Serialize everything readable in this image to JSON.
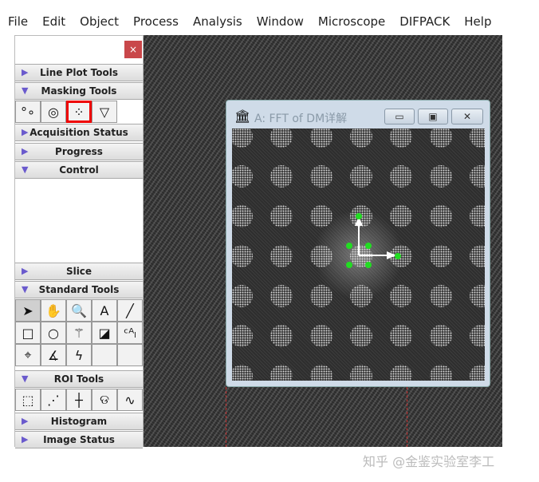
{
  "menu": [
    "File",
    "Edit",
    "Object",
    "Process",
    "Analysis",
    "Window",
    "Microscope",
    "DIFPACK",
    "Help"
  ],
  "panel": {
    "close": "×",
    "sections": {
      "line_plot": "Line Plot Tools",
      "masking": "Masking Tools",
      "acquisition": "Acquisition Status",
      "progress": "Progress",
      "control": "Control",
      "slice": "Slice",
      "standard": "Standard Tools",
      "roi": "ROI Tools",
      "histogram": "Histogram",
      "image_status": "Image Status"
    },
    "masking_tools": [
      {
        "icon": "point-mask-icon",
        "glyph": "°∘"
      },
      {
        "icon": "ring-mask-icon",
        "glyph": "◎"
      },
      {
        "icon": "array-mask-icon",
        "glyph": "⁘"
      },
      {
        "icon": "wedge-mask-icon",
        "glyph": "▽"
      }
    ],
    "standard_tools": [
      {
        "icon": "pointer-icon",
        "glyph": "➤"
      },
      {
        "icon": "hand-icon",
        "glyph": "✋"
      },
      {
        "icon": "magnifier-icon",
        "glyph": "🔍"
      },
      {
        "icon": "text-icon",
        "glyph": "A"
      },
      {
        "icon": "line-icon",
        "glyph": "╱"
      },
      {
        "icon": "rectangle-icon",
        "glyph": "□"
      },
      {
        "icon": "oval-icon",
        "glyph": "○"
      },
      {
        "icon": "magic-wand-icon",
        "glyph": "⚚"
      },
      {
        "icon": "profile-icon",
        "glyph": "◪"
      },
      {
        "icon": "calibration-icon",
        "glyph": "ᶜᴬₗ"
      },
      {
        "icon": "crosshair-icon",
        "glyph": "⌖"
      },
      {
        "icon": "angle-icon",
        "glyph": "∡"
      },
      {
        "icon": "lightning-icon",
        "glyph": "ϟ"
      },
      {
        "icon": "empty",
        "glyph": ""
      },
      {
        "icon": "empty",
        "glyph": ""
      }
    ],
    "roi_tools": [
      {
        "icon": "rect-roi-icon",
        "glyph": "⬚"
      },
      {
        "icon": "line-roi-icon",
        "glyph": "⋰"
      },
      {
        "icon": "point-roi-icon",
        "glyph": "┼"
      },
      {
        "icon": "lasso-icon",
        "glyph": "ଡ"
      },
      {
        "icon": "freehand-icon",
        "glyph": "∿"
      }
    ]
  },
  "fft_window": {
    "title": "A: FFT of DM详解",
    "minimize": "▭",
    "maximize": "▣",
    "close": "✕",
    "accent": "#22dd22"
  },
  "watermark": "知乎 @金鉴实验室李工"
}
